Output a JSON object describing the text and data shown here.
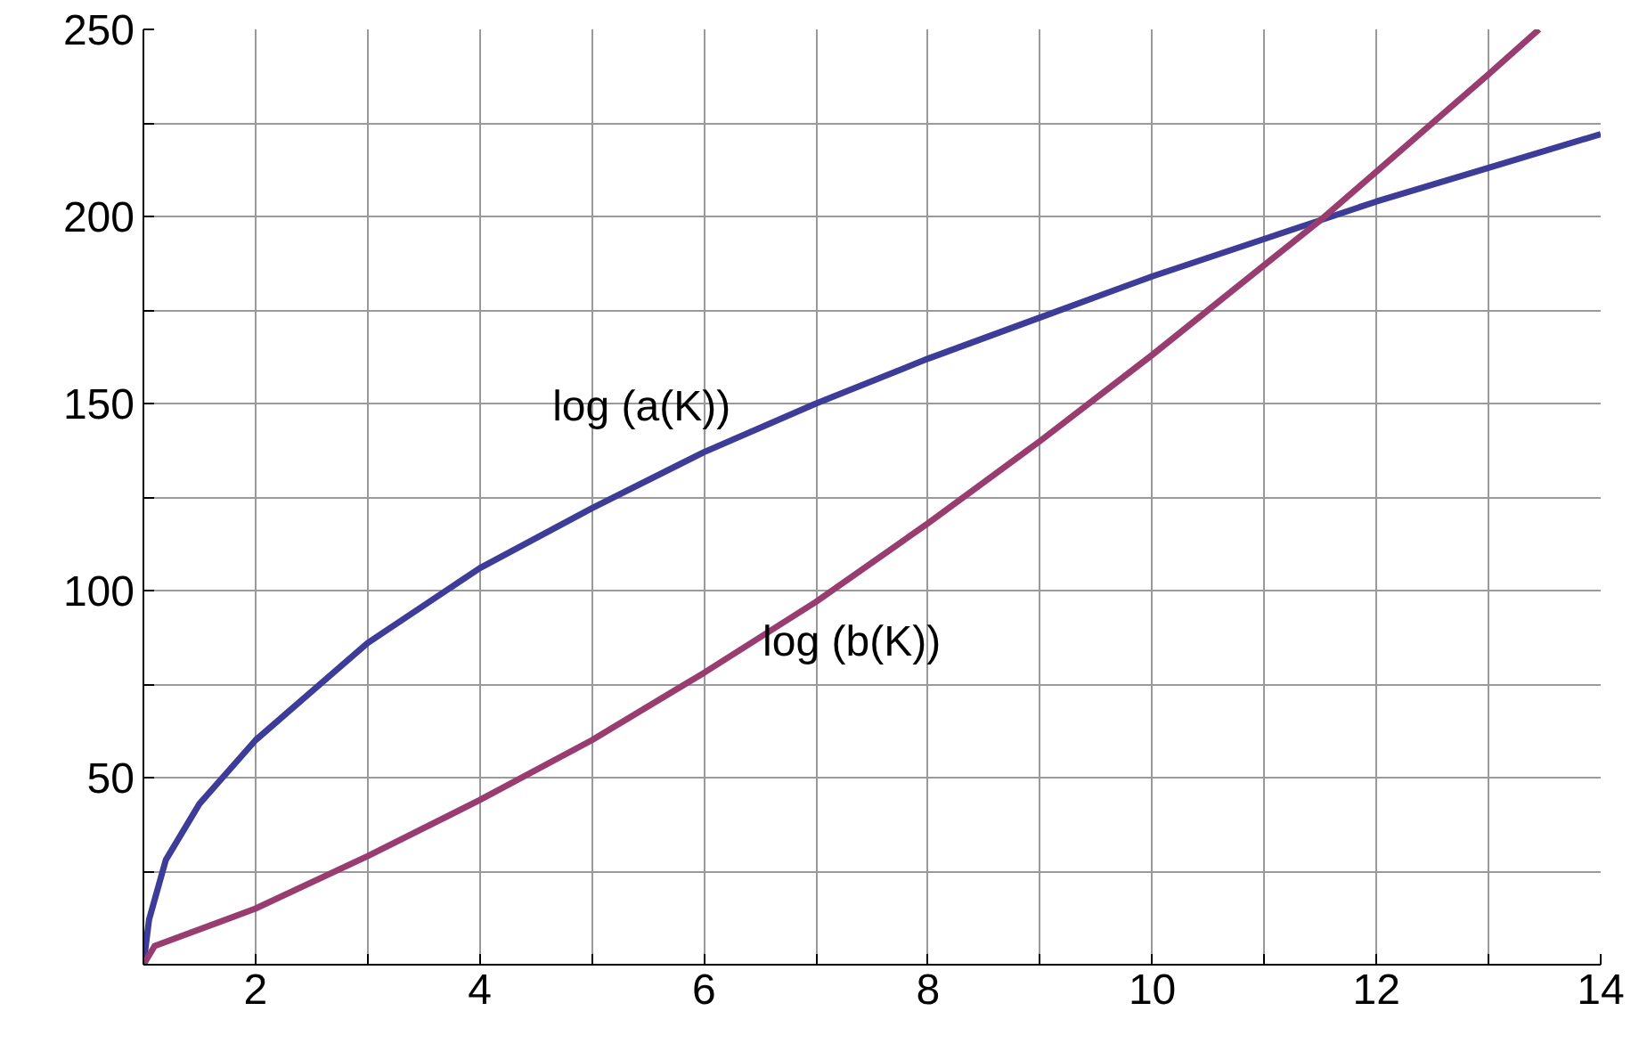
{
  "chart_data": {
    "type": "line",
    "x": [
      1,
      1.05,
      1.2,
      1.5,
      2,
      3,
      4,
      5,
      6,
      7,
      8,
      9,
      10,
      11,
      11.5,
      12,
      13,
      14
    ],
    "series": [
      {
        "name": "log (a(K))",
        "color": "#3d3d99",
        "values": [
          0,
          12,
          28,
          43,
          60,
          86,
          106,
          122,
          137,
          150,
          162,
          173,
          184,
          194,
          199,
          204,
          213,
          222
        ]
      },
      {
        "name": "log (b(K))",
        "color": "#993d70",
        "x": [
          1,
          1.1,
          2,
          3,
          4,
          5,
          6,
          7,
          8,
          9,
          10,
          11,
          11.5,
          12,
          13,
          13.45
        ],
        "values": [
          0,
          5,
          15,
          29,
          44,
          60,
          78,
          97,
          118,
          140,
          163,
          187,
          199,
          212,
          238,
          250
        ]
      }
    ],
    "xlim": [
      1,
      14
    ],
    "ylim": [
      0,
      250
    ],
    "xticks": [
      {
        "value": 1,
        "label": null
      },
      2,
      {
        "value": 3,
        "label": null
      },
      4,
      {
        "value": 5,
        "label": null
      },
      6,
      {
        "value": 7,
        "label": null
      },
      8,
      {
        "value": 9,
        "label": null
      },
      10,
      {
        "value": 11,
        "label": null
      },
      12,
      {
        "value": 13,
        "label": null
      },
      14
    ],
    "yticks": [
      {
        "value": 0,
        "label": null
      },
      {
        "value": 25,
        "label": null
      },
      50,
      {
        "value": 75,
        "label": null
      },
      100,
      {
        "value": 125,
        "label": null
      },
      150,
      {
        "value": 175,
        "label": null
      },
      200,
      {
        "value": 225,
        "label": null
      },
      250
    ],
    "grid": true,
    "legend": false
  }
}
